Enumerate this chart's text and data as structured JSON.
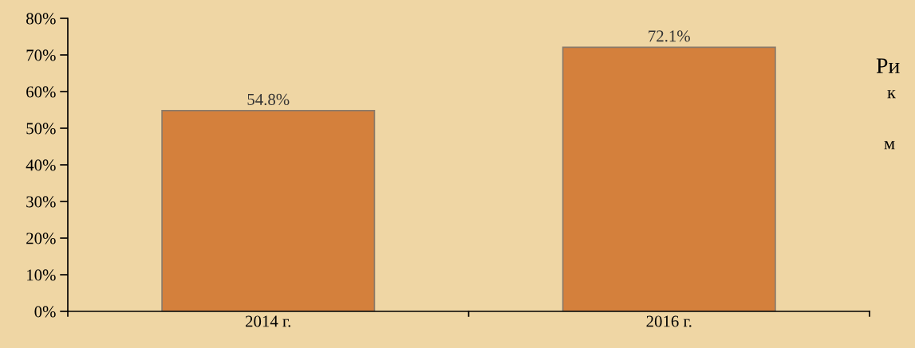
{
  "chart_data": {
    "type": "bar",
    "categories": [
      "2014 г.",
      "2016 г."
    ],
    "values": [
      54.8,
      72.1
    ],
    "color": "#d4803c",
    "value_labels": [
      "54.8%",
      "72.1%"
    ],
    "ylim": [
      0,
      80
    ],
    "yticks": [
      {
        "value": 0,
        "label": "0%"
      },
      {
        "value": 10,
        "label": "10%"
      },
      {
        "value": 20,
        "label": "20%"
      },
      {
        "value": 30,
        "label": "30%"
      },
      {
        "value": 40,
        "label": "40%"
      },
      {
        "value": 50,
        "label": "50%"
      },
      {
        "value": 60,
        "label": "60%"
      },
      {
        "value": 70,
        "label": "70%"
      },
      {
        "value": 80,
        "label": "80%"
      }
    ],
    "annotations": [
      "Ри",
      "к",
      "м"
    ]
  }
}
